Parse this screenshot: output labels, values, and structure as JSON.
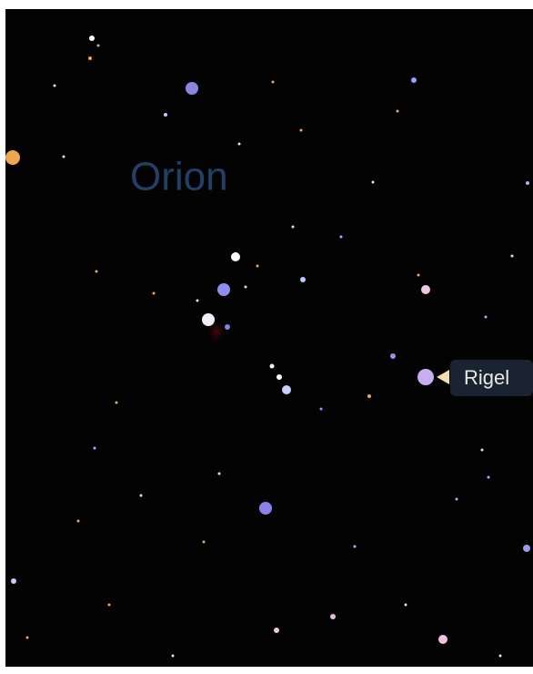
{
  "constellation": {
    "label": "Orion"
  },
  "star_label": {
    "text": "Rigel"
  }
}
